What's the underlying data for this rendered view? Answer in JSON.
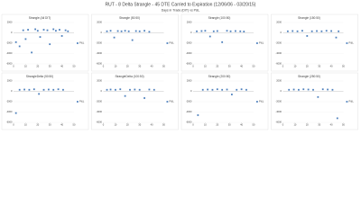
{
  "title": "RUT - 8 Delta Strangle - 45 DTE Carried to Expiration   (12/06/06 - 03/20/15)",
  "subtitle": "Days in Trade (DIT) vs P&L",
  "chart_data": [
    {
      "type": "scatter",
      "title": "Strangle (All DIT)",
      "x": [
        2,
        5,
        8,
        10,
        12,
        15,
        18,
        20,
        22,
        25,
        28,
        30,
        33,
        35,
        38,
        40,
        43,
        45
      ],
      "series": [
        {
          "name": "P&L",
          "color": "#4f81bd",
          "values": [
            -1800,
            -2600,
            500,
            -1200,
            600,
            -3800,
            700,
            400,
            -800,
            600,
            500,
            -2200,
            700,
            400,
            600,
            -600,
            500,
            300
          ]
        }
      ],
      "xlim": [
        0,
        50
      ],
      "xticks": [
        0,
        10,
        20,
        30,
        40,
        50
      ],
      "ylim": [
        -6000,
        2000
      ],
      "yticks": [
        -6000,
        -4000,
        -2000,
        0,
        2000
      ]
    },
    {
      "type": "scatter",
      "title": "Strangle (50:50)",
      "x": [
        3,
        6,
        9,
        12,
        15,
        18,
        21,
        24,
        27,
        30,
        34,
        38
      ],
      "series": [
        {
          "name": "P&L",
          "color": "#4f81bd",
          "values": [
            300,
            400,
            -900,
            350,
            300,
            400,
            300,
            -1400,
            350,
            300,
            400,
            200
          ]
        }
      ],
      "xlim": [
        0,
        50
      ],
      "xticks": [
        0,
        10,
        20,
        30,
        40,
        50
      ],
      "ylim": [
        -6000,
        2000
      ],
      "yticks": [
        -6000,
        -4000,
        -2000,
        0,
        2000
      ]
    },
    {
      "type": "scatter",
      "title": "Strangle (100:50)",
      "x": [
        3,
        7,
        10,
        14,
        17,
        20,
        24,
        28,
        31,
        35,
        39,
        42
      ],
      "series": [
        {
          "name": "P&L",
          "color": "#4f81bd",
          "values": [
            300,
            350,
            400,
            -700,
            300,
            350,
            -1800,
            400,
            300,
            350,
            300,
            250
          ]
        }
      ],
      "xlim": [
        0,
        50
      ],
      "xticks": [
        0,
        10,
        20,
        30,
        40,
        50
      ],
      "ylim": [
        -6000,
        2000
      ],
      "yticks": [
        -6000,
        -4000,
        -2000,
        0,
        2000
      ]
    },
    {
      "type": "scatter",
      "title": "Strangle (150:50)",
      "x": [
        4,
        8,
        12,
        16,
        20,
        24,
        28,
        32,
        36,
        40,
        44,
        46
      ],
      "series": [
        {
          "name": "P&L",
          "color": "#4f81bd",
          "values": [
            300,
            350,
            300,
            400,
            -600,
            300,
            350,
            300,
            400,
            350,
            -900,
            300
          ]
        }
      ],
      "xlim": [
        0,
        50
      ],
      "xticks": [
        0,
        10,
        20,
        30,
        40,
        50
      ],
      "ylim": [
        -6000,
        2000
      ],
      "yticks": [
        -6000,
        -4000,
        -2000,
        0,
        2000
      ]
    },
    {
      "type": "scatter",
      "title": "StrangleDelta (50:50)",
      "x": [
        2,
        5,
        9,
        13,
        17,
        21,
        25,
        29,
        33,
        37,
        41
      ],
      "series": [
        {
          "name": "P&L",
          "color": "#4f81bd",
          "values": [
            -4200,
            300,
            350,
            300,
            400,
            -500,
            300,
            350,
            300,
            400,
            300
          ]
        }
      ],
      "xlim": [
        0,
        50
      ],
      "xticks": [
        0,
        10,
        20,
        30,
        40,
        50
      ],
      "ylim": [
        -6000,
        2000
      ],
      "yticks": [
        -6000,
        -4000,
        -2000,
        0,
        2000
      ]
    },
    {
      "type": "scatter",
      "title": "StrangleDelta (100:50)",
      "x": [
        3,
        6,
        10,
        14,
        18,
        22,
        26,
        30,
        34,
        38,
        42
      ],
      "series": [
        {
          "name": "P&L",
          "color": "#4f81bd",
          "values": [
            300,
            350,
            300,
            400,
            -900,
            300,
            350,
            300,
            -1300,
            350,
            300
          ]
        }
      ],
      "xlim": [
        0,
        50
      ],
      "xticks": [
        0,
        10,
        20,
        30,
        40,
        50
      ],
      "ylim": [
        -6000,
        2000
      ],
      "yticks": [
        -6000,
        -4000,
        -2000,
        0,
        2000
      ]
    },
    {
      "type": "scatter",
      "title": "Strangle (200:50)",
      "x": [
        4,
        8,
        12,
        16,
        20,
        24,
        28,
        32,
        36,
        40,
        44
      ],
      "series": [
        {
          "name": "P&L",
          "color": "#4f81bd",
          "values": [
            -4600,
            300,
            350,
            300,
            400,
            300,
            350,
            -600,
            300,
            400,
            300
          ]
        }
      ],
      "xlim": [
        0,
        50
      ],
      "xticks": [
        0,
        10,
        20,
        30,
        40,
        50
      ],
      "ylim": [
        -6000,
        2000
      ],
      "yticks": [
        -6000,
        -4000,
        -2000,
        0,
        2000
      ]
    },
    {
      "type": "scatter",
      "title": "Strangle (250:50)",
      "x": [
        5,
        9,
        13,
        17,
        21,
        25,
        29,
        33,
        37,
        41,
        45
      ],
      "series": [
        {
          "name": "P&L",
          "color": "#4f81bd",
          "values": [
            300,
            350,
            300,
            400,
            350,
            300,
            -1100,
            400,
            350,
            300,
            -5200
          ]
        }
      ],
      "xlim": [
        0,
        50
      ],
      "xticks": [
        0,
        10,
        20,
        30,
        40,
        50
      ],
      "ylim": [
        -6000,
        2000
      ],
      "yticks": [
        -6000,
        -4000,
        -2000,
        0,
        2000
      ]
    }
  ]
}
